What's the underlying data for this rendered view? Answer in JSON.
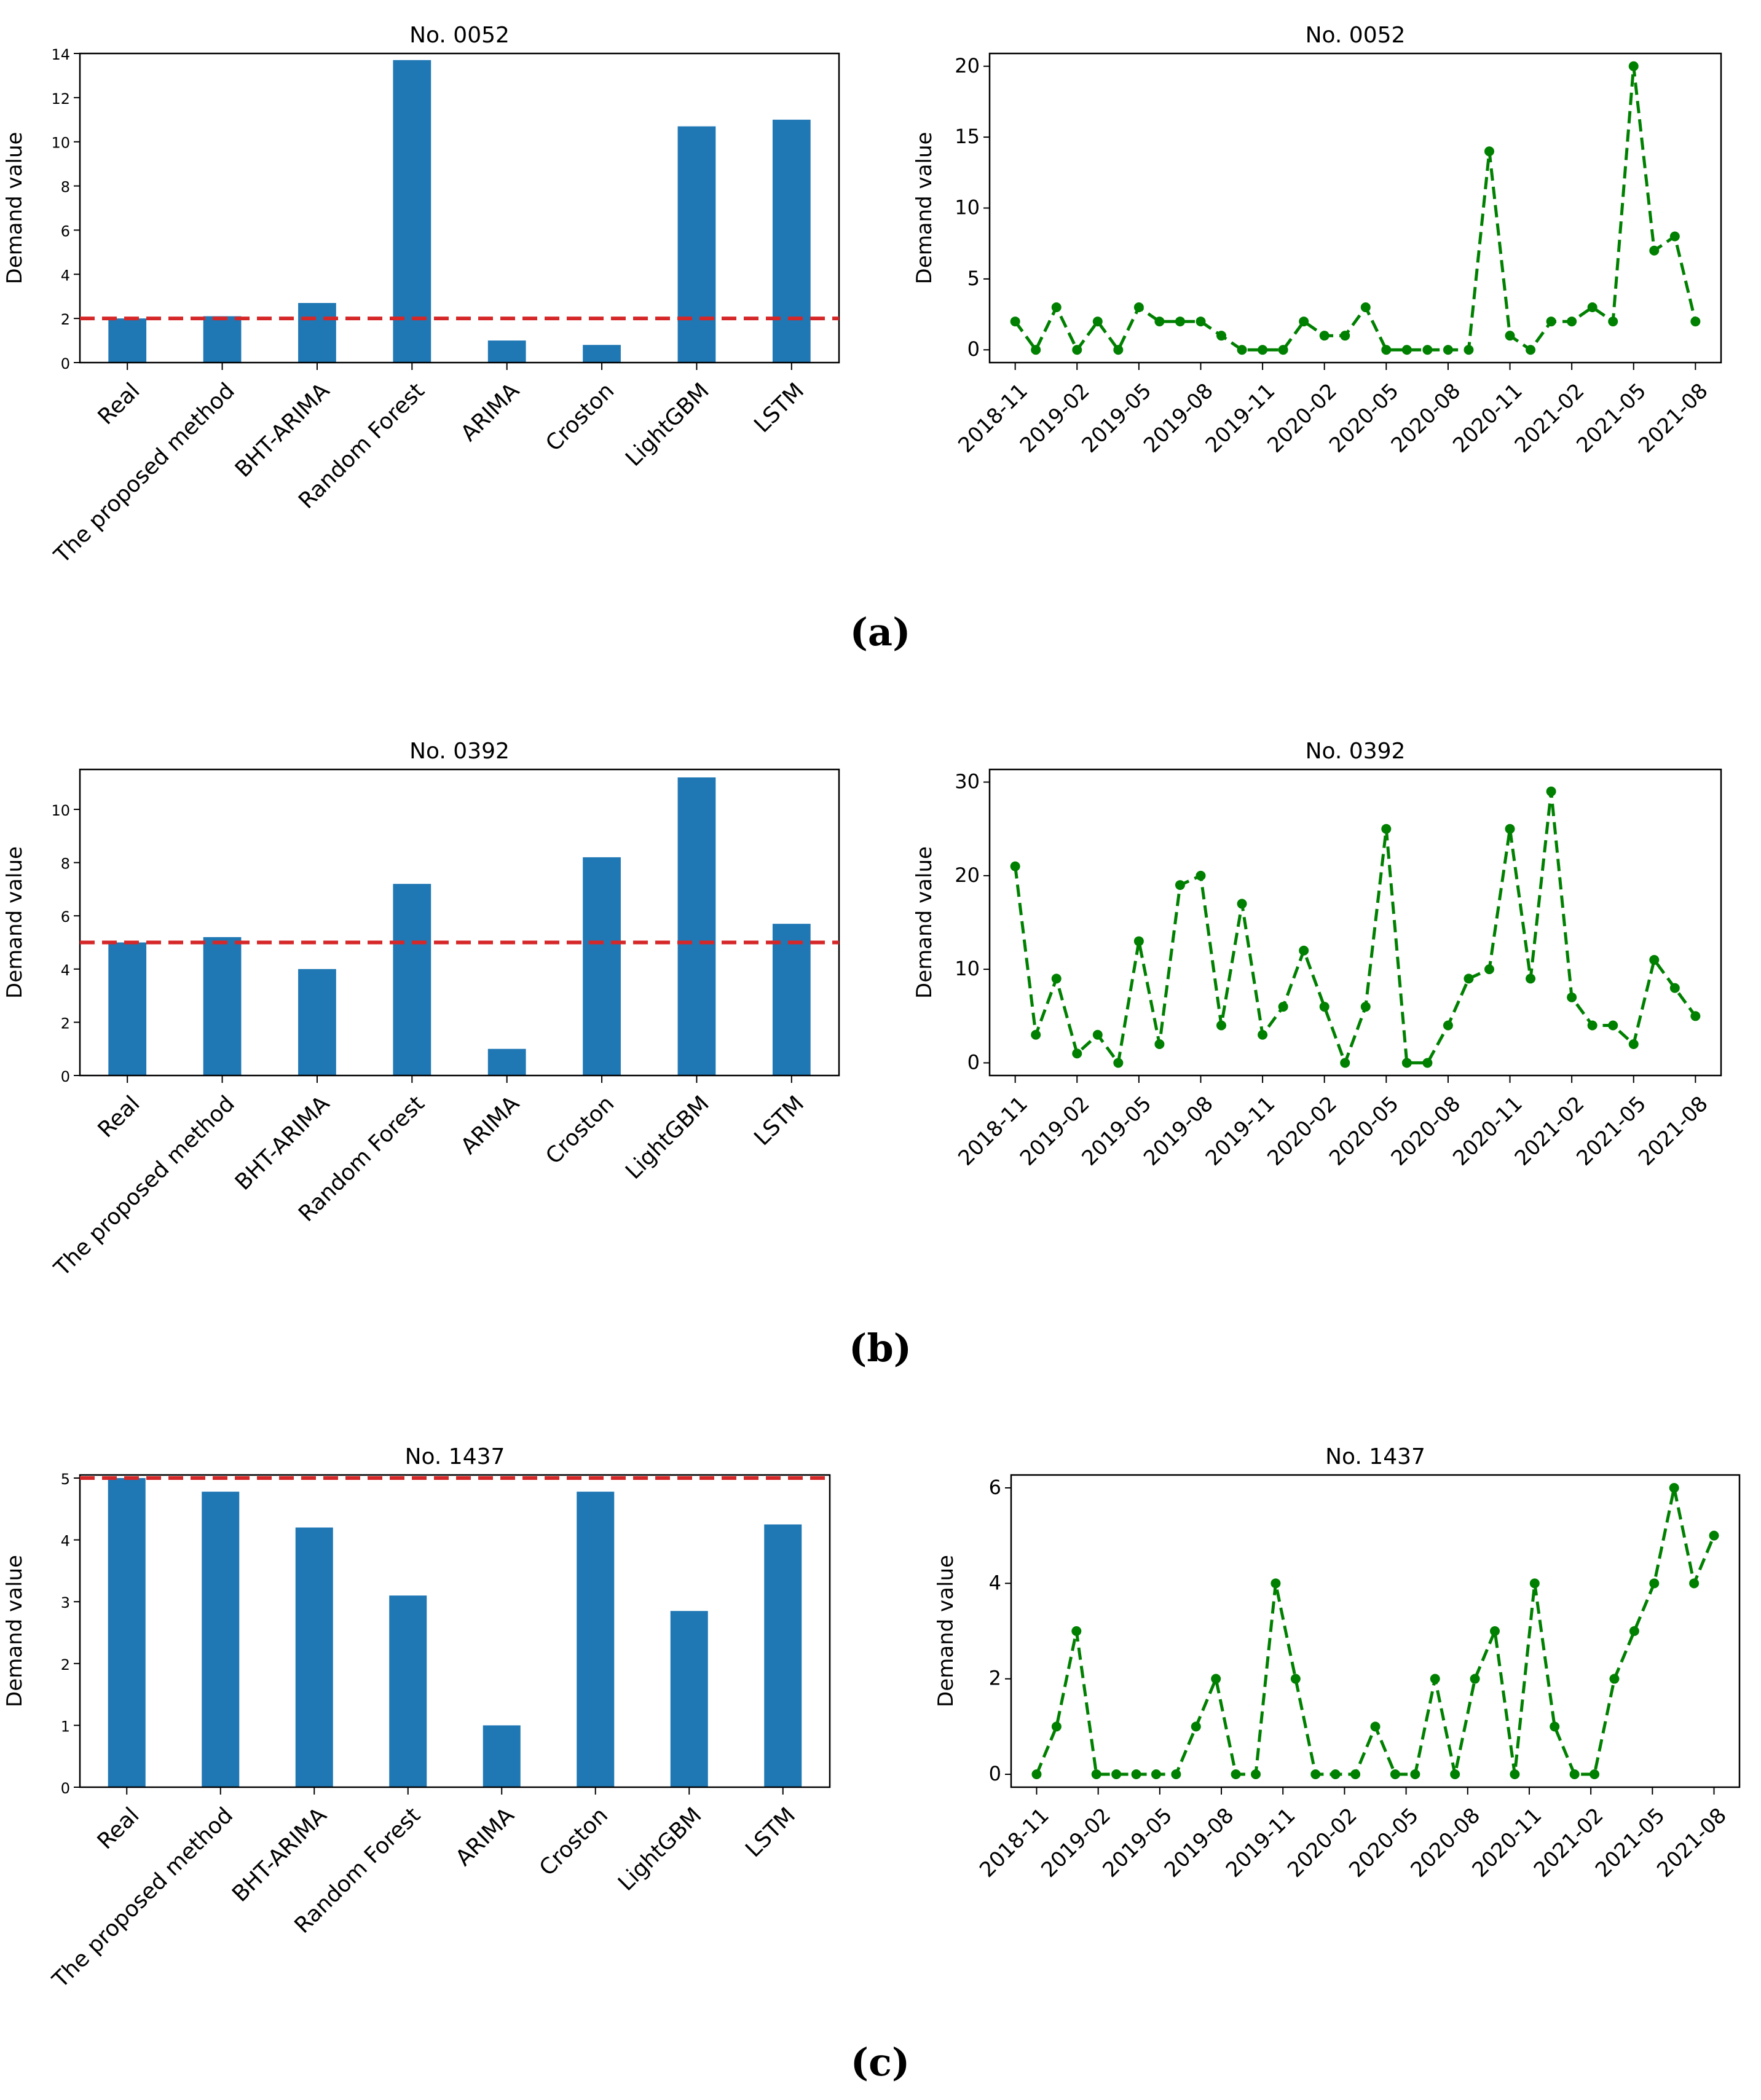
{
  "chart_data": [
    {
      "type": "bar",
      "panel": "a-left",
      "title": "No. 0052",
      "xlabel": "",
      "ylabel": "Demand value",
      "categories": [
        "Real",
        "The proposed method",
        "BHT-ARIMA",
        "Random Forest",
        "ARIMA",
        "Croston",
        "LightGBM",
        "LSTM"
      ],
      "values": [
        2.0,
        2.1,
        2.7,
        13.7,
        1.0,
        0.8,
        10.7,
        11.0
      ],
      "ylim": [
        0,
        14
      ],
      "yticks": [
        0,
        2,
        4,
        6,
        8,
        10,
        12,
        14
      ],
      "reference_line": 2,
      "bar_color": "#1f77b4",
      "reference_color": "#d62728"
    },
    {
      "type": "line",
      "panel": "a-right",
      "title": "No. 0052",
      "xlabel": "",
      "ylabel": "Demand value",
      "values": [
        2,
        0,
        3,
        0,
        2,
        0,
        3,
        2,
        2,
        2,
        1,
        0,
        0,
        0,
        2,
        1,
        1,
        3,
        0,
        0,
        0,
        0,
        0,
        14,
        1,
        0,
        2,
        2,
        3,
        2,
        20,
        7,
        8,
        2
      ],
      "xtick_labels": [
        "2018-11",
        "2019-02",
        "2019-05",
        "2019-08",
        "2019-11",
        "2020-02",
        "2020-05",
        "2020-08",
        "2020-11",
        "2021-02",
        "2021-05",
        "2021-08"
      ],
      "ylim": [
        0,
        20
      ],
      "yticks": [
        0,
        5,
        10,
        15,
        20
      ],
      "line_color": "#008000"
    },
    {
      "type": "bar",
      "panel": "b-left",
      "title": "No. 0392",
      "xlabel": "",
      "ylabel": "Demand value",
      "categories": [
        "Real",
        "The proposed method",
        "BHT-ARIMA",
        "Random Forest",
        "ARIMA",
        "Croston",
        "LightGBM",
        "LSTM"
      ],
      "values": [
        5.0,
        5.2,
        4.0,
        7.2,
        1.0,
        8.2,
        11.2,
        5.7
      ],
      "ylim": [
        0,
        11.5
      ],
      "yticks": [
        0,
        2,
        4,
        6,
        8,
        10
      ],
      "reference_line": 5,
      "bar_color": "#1f77b4",
      "reference_color": "#d62728"
    },
    {
      "type": "line",
      "panel": "b-right",
      "title": "No. 0392",
      "xlabel": "",
      "ylabel": "Demand value",
      "values": [
        21,
        3,
        9,
        1,
        3,
        0,
        13,
        2,
        19,
        20,
        4,
        17,
        3,
        6,
        12,
        6,
        0,
        6,
        25,
        0,
        0,
        4,
        9,
        10,
        25,
        9,
        29,
        7,
        4,
        4,
        2,
        11,
        8,
        5
      ],
      "xtick_labels": [
        "2018-11",
        "2019-02",
        "2019-05",
        "2019-08",
        "2019-11",
        "2020-02",
        "2020-05",
        "2020-08",
        "2020-11",
        "2021-02",
        "2021-05",
        "2021-08"
      ],
      "ylim": [
        0,
        30
      ],
      "yticks": [
        0,
        10,
        20,
        30
      ],
      "line_color": "#008000"
    },
    {
      "type": "bar",
      "panel": "c-left",
      "title": "No. 1437",
      "xlabel": "",
      "ylabel": "Demand value",
      "categories": [
        "Real",
        "The proposed method",
        "BHT-ARIMA",
        "Random Forest",
        "ARIMA",
        "Croston",
        "LightGBM",
        "LSTM"
      ],
      "values": [
        5.0,
        4.78,
        4.2,
        3.1,
        1.0,
        4.78,
        2.85,
        4.25
      ],
      "ylim": [
        0,
        5.05
      ],
      "yticks": [
        0,
        1,
        2,
        3,
        4,
        5
      ],
      "reference_line": 5,
      "bar_color": "#1f77b4",
      "reference_color": "#d62728"
    },
    {
      "type": "line",
      "panel": "c-right",
      "title": "No. 1437",
      "xlabel": "",
      "ylabel": "Demand value",
      "values": [
        0,
        1,
        3,
        0,
        0,
        0,
        0,
        0,
        1,
        2,
        0,
        0,
        4,
        2,
        0,
        0,
        0,
        1,
        0,
        0,
        2,
        0,
        2,
        3,
        0,
        4,
        1,
        0,
        0,
        2,
        3,
        4,
        6,
        4,
        5
      ],
      "xtick_labels": [
        "2018-11",
        "2019-02",
        "2019-05",
        "2019-08",
        "2019-11",
        "2020-02",
        "2020-05",
        "2020-08",
        "2020-11",
        "2021-02",
        "2021-05",
        "2021-08"
      ],
      "ylim": [
        0,
        6
      ],
      "yticks": [
        0,
        2,
        4,
        6
      ],
      "line_color": "#008000"
    }
  ],
  "captions": {
    "a": "(a)",
    "b": "(b)",
    "c": "(c)"
  }
}
